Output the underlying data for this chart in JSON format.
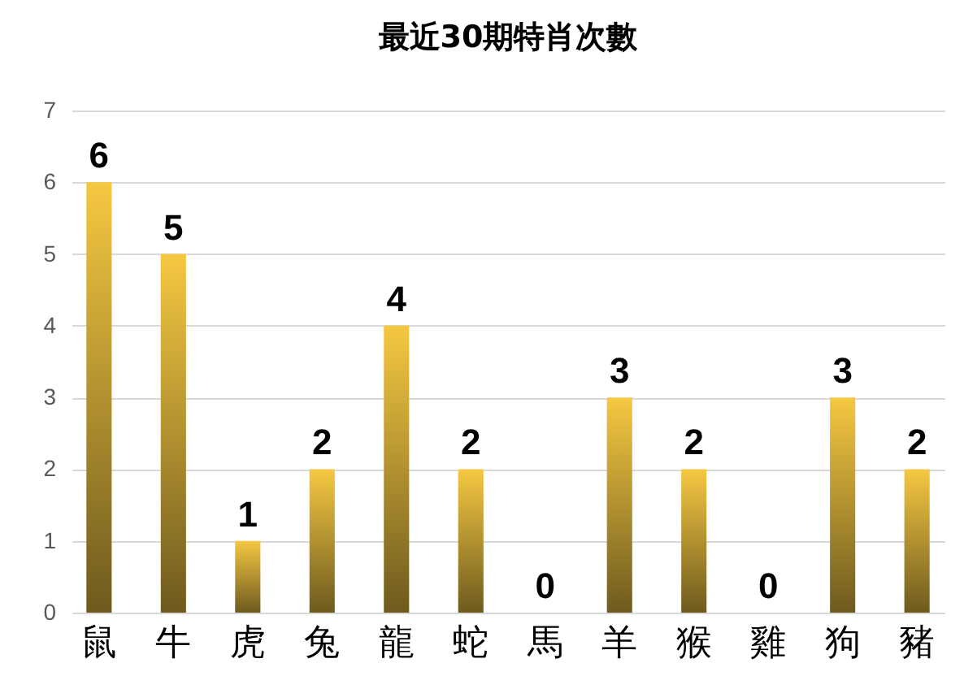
{
  "chart_data": {
    "type": "bar",
    "title": "最近30期特肖次數",
    "categories": [
      "鼠",
      "牛",
      "虎",
      "兔",
      "龍",
      "蛇",
      "馬",
      "羊",
      "猴",
      "雞",
      "狗",
      "豬"
    ],
    "values": [
      6,
      5,
      1,
      2,
      4,
      2,
      0,
      3,
      2,
      0,
      3,
      2
    ],
    "color": "#f5c842",
    "ylim": [
      0,
      7
    ],
    "yticks": [
      0,
      1,
      2,
      3,
      4,
      5,
      6,
      7
    ],
    "grid": "y",
    "data_labels": true
  }
}
